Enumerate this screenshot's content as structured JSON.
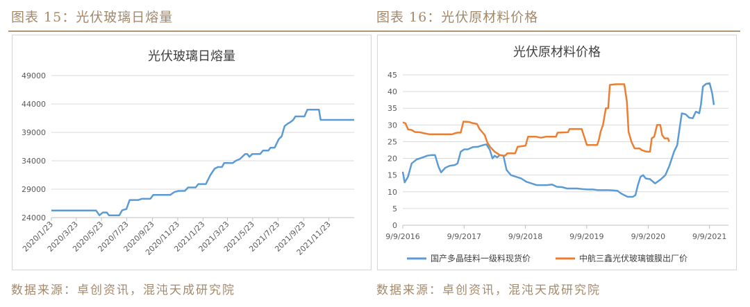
{
  "left": {
    "figure_title": "图表 15：光伏玻璃日熔量",
    "source": "数据来源：卓创资讯，混沌天成研究院"
  },
  "right": {
    "figure_title": "图表 16：光伏原材料价格",
    "source": "数据来源：卓创资讯，混沌天成研究院"
  },
  "colors": {
    "blue": "#5b9bd5",
    "orange": "#ed7d31",
    "accent": "#a4896b"
  },
  "chart_data": [
    {
      "type": "line",
      "title": "光伏玻璃日熔量",
      "x_ticks": [
        "2020/1/23",
        "2020/3/23",
        "2020/5/23",
        "2020/7/23",
        "2020/9/23",
        "2020/11/23",
        "2021/1/23",
        "2021/3/23",
        "2021/5/23",
        "2021/7/23",
        "2021/9/23",
        "2021/11/23"
      ],
      "y_ticks": [
        "24000",
        "29000",
        "34000",
        "39000",
        "44000",
        "49000"
      ],
      "ylim": [
        24000,
        49000
      ],
      "xlim": [
        "2020-01-23",
        "2022-01-23"
      ],
      "grid": true,
      "series": [
        {
          "color": "#5b9bd5",
          "points": [
            [
              "2020-01-23",
              25250
            ],
            [
              "2020-05-10",
              25250
            ],
            [
              "2020-05-18",
              24400
            ],
            [
              "2020-05-26",
              24900
            ],
            [
              "2020-06-05",
              24900
            ],
            [
              "2020-06-10",
              24400
            ],
            [
              "2020-07-05",
              24400
            ],
            [
              "2020-07-12",
              25300
            ],
            [
              "2020-07-22",
              25500
            ],
            [
              "2020-07-30",
              27100
            ],
            [
              "2020-08-20",
              27100
            ],
            [
              "2020-08-28",
              27300
            ],
            [
              "2020-09-18",
              27300
            ],
            [
              "2020-09-25",
              28000
            ],
            [
              "2020-11-05",
              28000
            ],
            [
              "2020-11-15",
              28500
            ],
            [
              "2020-11-25",
              28700
            ],
            [
              "2020-12-10",
              28700
            ],
            [
              "2020-12-18",
              29300
            ],
            [
              "2021-01-05",
              29300
            ],
            [
              "2021-01-12",
              29900
            ],
            [
              "2021-01-30",
              29900
            ],
            [
              "2021-02-10",
              31500
            ],
            [
              "2021-02-20",
              32600
            ],
            [
              "2021-02-28",
              32900
            ],
            [
              "2021-03-10",
              32900
            ],
            [
              "2021-03-15",
              33600
            ],
            [
              "2021-04-05",
              33600
            ],
            [
              "2021-04-12",
              34000
            ],
            [
              "2021-04-22",
              34300
            ],
            [
              "2021-05-05",
              35200
            ],
            [
              "2021-05-10",
              35200
            ],
            [
              "2021-05-15",
              34700
            ],
            [
              "2021-05-22",
              35200
            ],
            [
              "2021-06-10",
              35200
            ],
            [
              "2021-06-17",
              35800
            ],
            [
              "2021-06-30",
              35800
            ],
            [
              "2021-07-05",
              36300
            ],
            [
              "2021-07-15",
              36300
            ],
            [
              "2021-07-25",
              37800
            ],
            [
              "2021-08-01",
              38300
            ],
            [
              "2021-08-08",
              40100
            ],
            [
              "2021-08-15",
              40500
            ],
            [
              "2021-08-22",
              40800
            ],
            [
              "2021-08-29",
              41200
            ],
            [
              "2021-09-03",
              41800
            ],
            [
              "2021-09-25",
              41800
            ],
            [
              "2021-10-02",
              43000
            ],
            [
              "2021-10-30",
              43000
            ],
            [
              "2021-11-03",
              41200
            ],
            [
              "2022-01-23",
              41200
            ]
          ]
        }
      ]
    },
    {
      "type": "line",
      "title": "光伏原材料价格",
      "x_ticks": [
        "9/9/2016",
        "9/9/2017",
        "9/9/2018",
        "9/9/2019",
        "9/9/2020",
        "9/9/2021"
      ],
      "y_ticks": [
        "0",
        "5",
        "10",
        "15",
        "20",
        "25",
        "30",
        "35",
        "40",
        "45"
      ],
      "ylim": [
        0,
        45
      ],
      "xlim": [
        "2016-09-09",
        "2021-12-31"
      ],
      "grid": true,
      "legend_position": "bottom",
      "series": [
        {
          "name": "国产多晶硅料一级料现货价",
          "color": "#5b9bd5",
          "points": [
            [
              "2016-09-09",
              16
            ],
            [
              "2016-09-20",
              12.8
            ],
            [
              "2016-10-10",
              14.5
            ],
            [
              "2016-11-01",
              18.5
            ],
            [
              "2016-12-01",
              19.7
            ],
            [
              "2017-01-01",
              20.2
            ],
            [
              "2017-02-01",
              20.8
            ],
            [
              "2017-03-01",
              21
            ],
            [
              "2017-03-20",
              21
            ],
            [
              "2017-04-10",
              17.5
            ],
            [
              "2017-04-25",
              15.8
            ],
            [
              "2017-05-20",
              17.2
            ],
            [
              "2017-06-15",
              17.8
            ],
            [
              "2017-07-15",
              18
            ],
            [
              "2017-08-01",
              18.5
            ],
            [
              "2017-08-20",
              22
            ],
            [
              "2017-09-10",
              22.7
            ],
            [
              "2017-10-01",
              22.7
            ],
            [
              "2017-11-01",
              23.4
            ],
            [
              "2017-12-01",
              23.5
            ],
            [
              "2018-01-01",
              24
            ],
            [
              "2018-01-20",
              24.2
            ],
            [
              "2018-02-10",
              22.5
            ],
            [
              "2018-02-25",
              20
            ],
            [
              "2018-03-10",
              20.8
            ],
            [
              "2018-03-25",
              20.3
            ],
            [
              "2018-04-10",
              21
            ],
            [
              "2018-05-01",
              20.8
            ],
            [
              "2018-05-20",
              16.5
            ],
            [
              "2018-06-15",
              15
            ],
            [
              "2018-07-15",
              14.5
            ],
            [
              "2018-08-15",
              14
            ],
            [
              "2018-09-15",
              13
            ],
            [
              "2018-10-15",
              12.5
            ],
            [
              "2018-11-15",
              12
            ],
            [
              "2018-12-15",
              12
            ],
            [
              "2019-01-15",
              12
            ],
            [
              "2019-02-15",
              12.2
            ],
            [
              "2019-03-15",
              11.5
            ],
            [
              "2019-04-15",
              11.4
            ],
            [
              "2019-05-15",
              11
            ],
            [
              "2019-06-15",
              11
            ],
            [
              "2019-07-15",
              11
            ],
            [
              "2019-08-15",
              10.8
            ],
            [
              "2019-09-15",
              10.7
            ],
            [
              "2019-10-15",
              10.7
            ],
            [
              "2019-11-15",
              10.5
            ],
            [
              "2019-12-15",
              10.5
            ],
            [
              "2020-01-15",
              10.5
            ],
            [
              "2020-02-15",
              10.4
            ],
            [
              "2020-03-10",
              10.3
            ],
            [
              "2020-04-01",
              9.5
            ],
            [
              "2020-04-20",
              9
            ],
            [
              "2020-05-10",
              8.5
            ],
            [
              "2020-06-10",
              8.5
            ],
            [
              "2020-06-25",
              9
            ],
            [
              "2020-07-10",
              12
            ],
            [
              "2020-07-25",
              14.5
            ],
            [
              "2020-08-10",
              15
            ],
            [
              "2020-08-25",
              14
            ],
            [
              "2020-09-20",
              13.8
            ],
            [
              "2020-10-20",
              12.5
            ],
            [
              "2020-11-20",
              13.6
            ],
            [
              "2020-12-20",
              15
            ],
            [
              "2021-01-15",
              18
            ],
            [
              "2021-02-10",
              22
            ],
            [
              "2021-03-01",
              24
            ],
            [
              "2021-03-15",
              29
            ],
            [
              "2021-03-28",
              33.5
            ],
            [
              "2021-04-20",
              33.2
            ],
            [
              "2021-05-10",
              32.2
            ],
            [
              "2021-06-01",
              32
            ],
            [
              "2021-06-20",
              34
            ],
            [
              "2021-07-10",
              33.5
            ],
            [
              "2021-07-20",
              36
            ],
            [
              "2021-08-01",
              41.5
            ],
            [
              "2021-08-20",
              42.3
            ],
            [
              "2021-09-10",
              42.5
            ],
            [
              "2021-09-25",
              39.5
            ],
            [
              "2021-10-05",
              36
            ]
          ]
        },
        {
          "name": "中航三鑫光伏玻璃镀膜出厂价",
          "color": "#ed7d31",
          "points": [
            [
              "2016-09-09",
              30.8
            ],
            [
              "2016-09-25",
              30.5
            ],
            [
              "2016-10-10",
              28.7
            ],
            [
              "2016-11-01",
              28.5
            ],
            [
              "2016-11-20",
              27.9
            ],
            [
              "2016-12-20",
              27.8
            ],
            [
              "2017-01-15",
              27.5
            ],
            [
              "2017-02-15",
              27.2
            ],
            [
              "2017-04-01",
              27.2
            ],
            [
              "2017-06-01",
              27.2
            ],
            [
              "2017-07-01",
              27.2
            ],
            [
              "2017-07-15",
              27.5
            ],
            [
              "2017-08-01",
              27.7
            ],
            [
              "2017-08-20",
              27.7
            ],
            [
              "2017-09-05",
              31
            ],
            [
              "2017-10-10",
              30.9
            ],
            [
              "2017-10-25",
              30.6
            ],
            [
              "2017-11-25",
              30.3
            ],
            [
              "2017-12-10",
              28.8
            ],
            [
              "2018-01-10",
              27
            ],
            [
              "2018-01-25",
              24.8
            ],
            [
              "2018-02-10",
              23.5
            ],
            [
              "2018-03-10",
              22
            ],
            [
              "2018-04-10",
              21
            ],
            [
              "2018-05-10",
              20.8
            ],
            [
              "2018-05-25",
              21.5
            ],
            [
              "2018-07-10",
              21.5
            ],
            [
              "2018-07-25",
              23.5
            ],
            [
              "2018-09-10",
              23.8
            ],
            [
              "2018-09-25",
              26.5
            ],
            [
              "2018-11-10",
              26.5
            ],
            [
              "2018-12-10",
              26.2
            ],
            [
              "2019-01-10",
              26.5
            ],
            [
              "2019-03-10",
              26.5
            ],
            [
              "2019-03-20",
              27.7
            ],
            [
              "2019-05-20",
              27.8
            ],
            [
              "2019-05-30",
              28.8
            ],
            [
              "2019-08-10",
              28.8
            ],
            [
              "2019-08-20",
              27.3
            ],
            [
              "2019-09-10",
              24
            ],
            [
              "2019-10-10",
              24
            ],
            [
              "2019-11-10",
              24
            ],
            [
              "2019-11-20",
              25.5
            ],
            [
              "2019-12-01",
              28
            ],
            [
              "2019-12-15",
              30
            ],
            [
              "2020-01-01",
              35
            ],
            [
              "2020-01-15",
              35
            ],
            [
              "2020-01-25",
              42
            ],
            [
              "2020-03-01",
              42.2
            ],
            [
              "2020-04-01",
              42.2
            ],
            [
              "2020-04-20",
              42.2
            ],
            [
              "2020-05-05",
              37
            ],
            [
              "2020-05-15",
              28
            ],
            [
              "2020-06-01",
              25
            ],
            [
              "2020-06-20",
              23
            ],
            [
              "2020-07-20",
              23
            ],
            [
              "2020-08-01",
              22.5
            ],
            [
              "2020-09-01",
              22
            ],
            [
              "2020-09-20",
              22
            ],
            [
              "2020-09-30",
              26
            ],
            [
              "2020-10-15",
              26.5
            ],
            [
              "2020-11-01",
              30
            ],
            [
              "2020-11-20",
              30
            ],
            [
              "2020-12-01",
              27
            ],
            [
              "2020-12-15",
              26
            ],
            [
              "2021-01-05",
              26
            ],
            [
              "2021-01-12",
              25
            ]
          ]
        }
      ]
    }
  ]
}
